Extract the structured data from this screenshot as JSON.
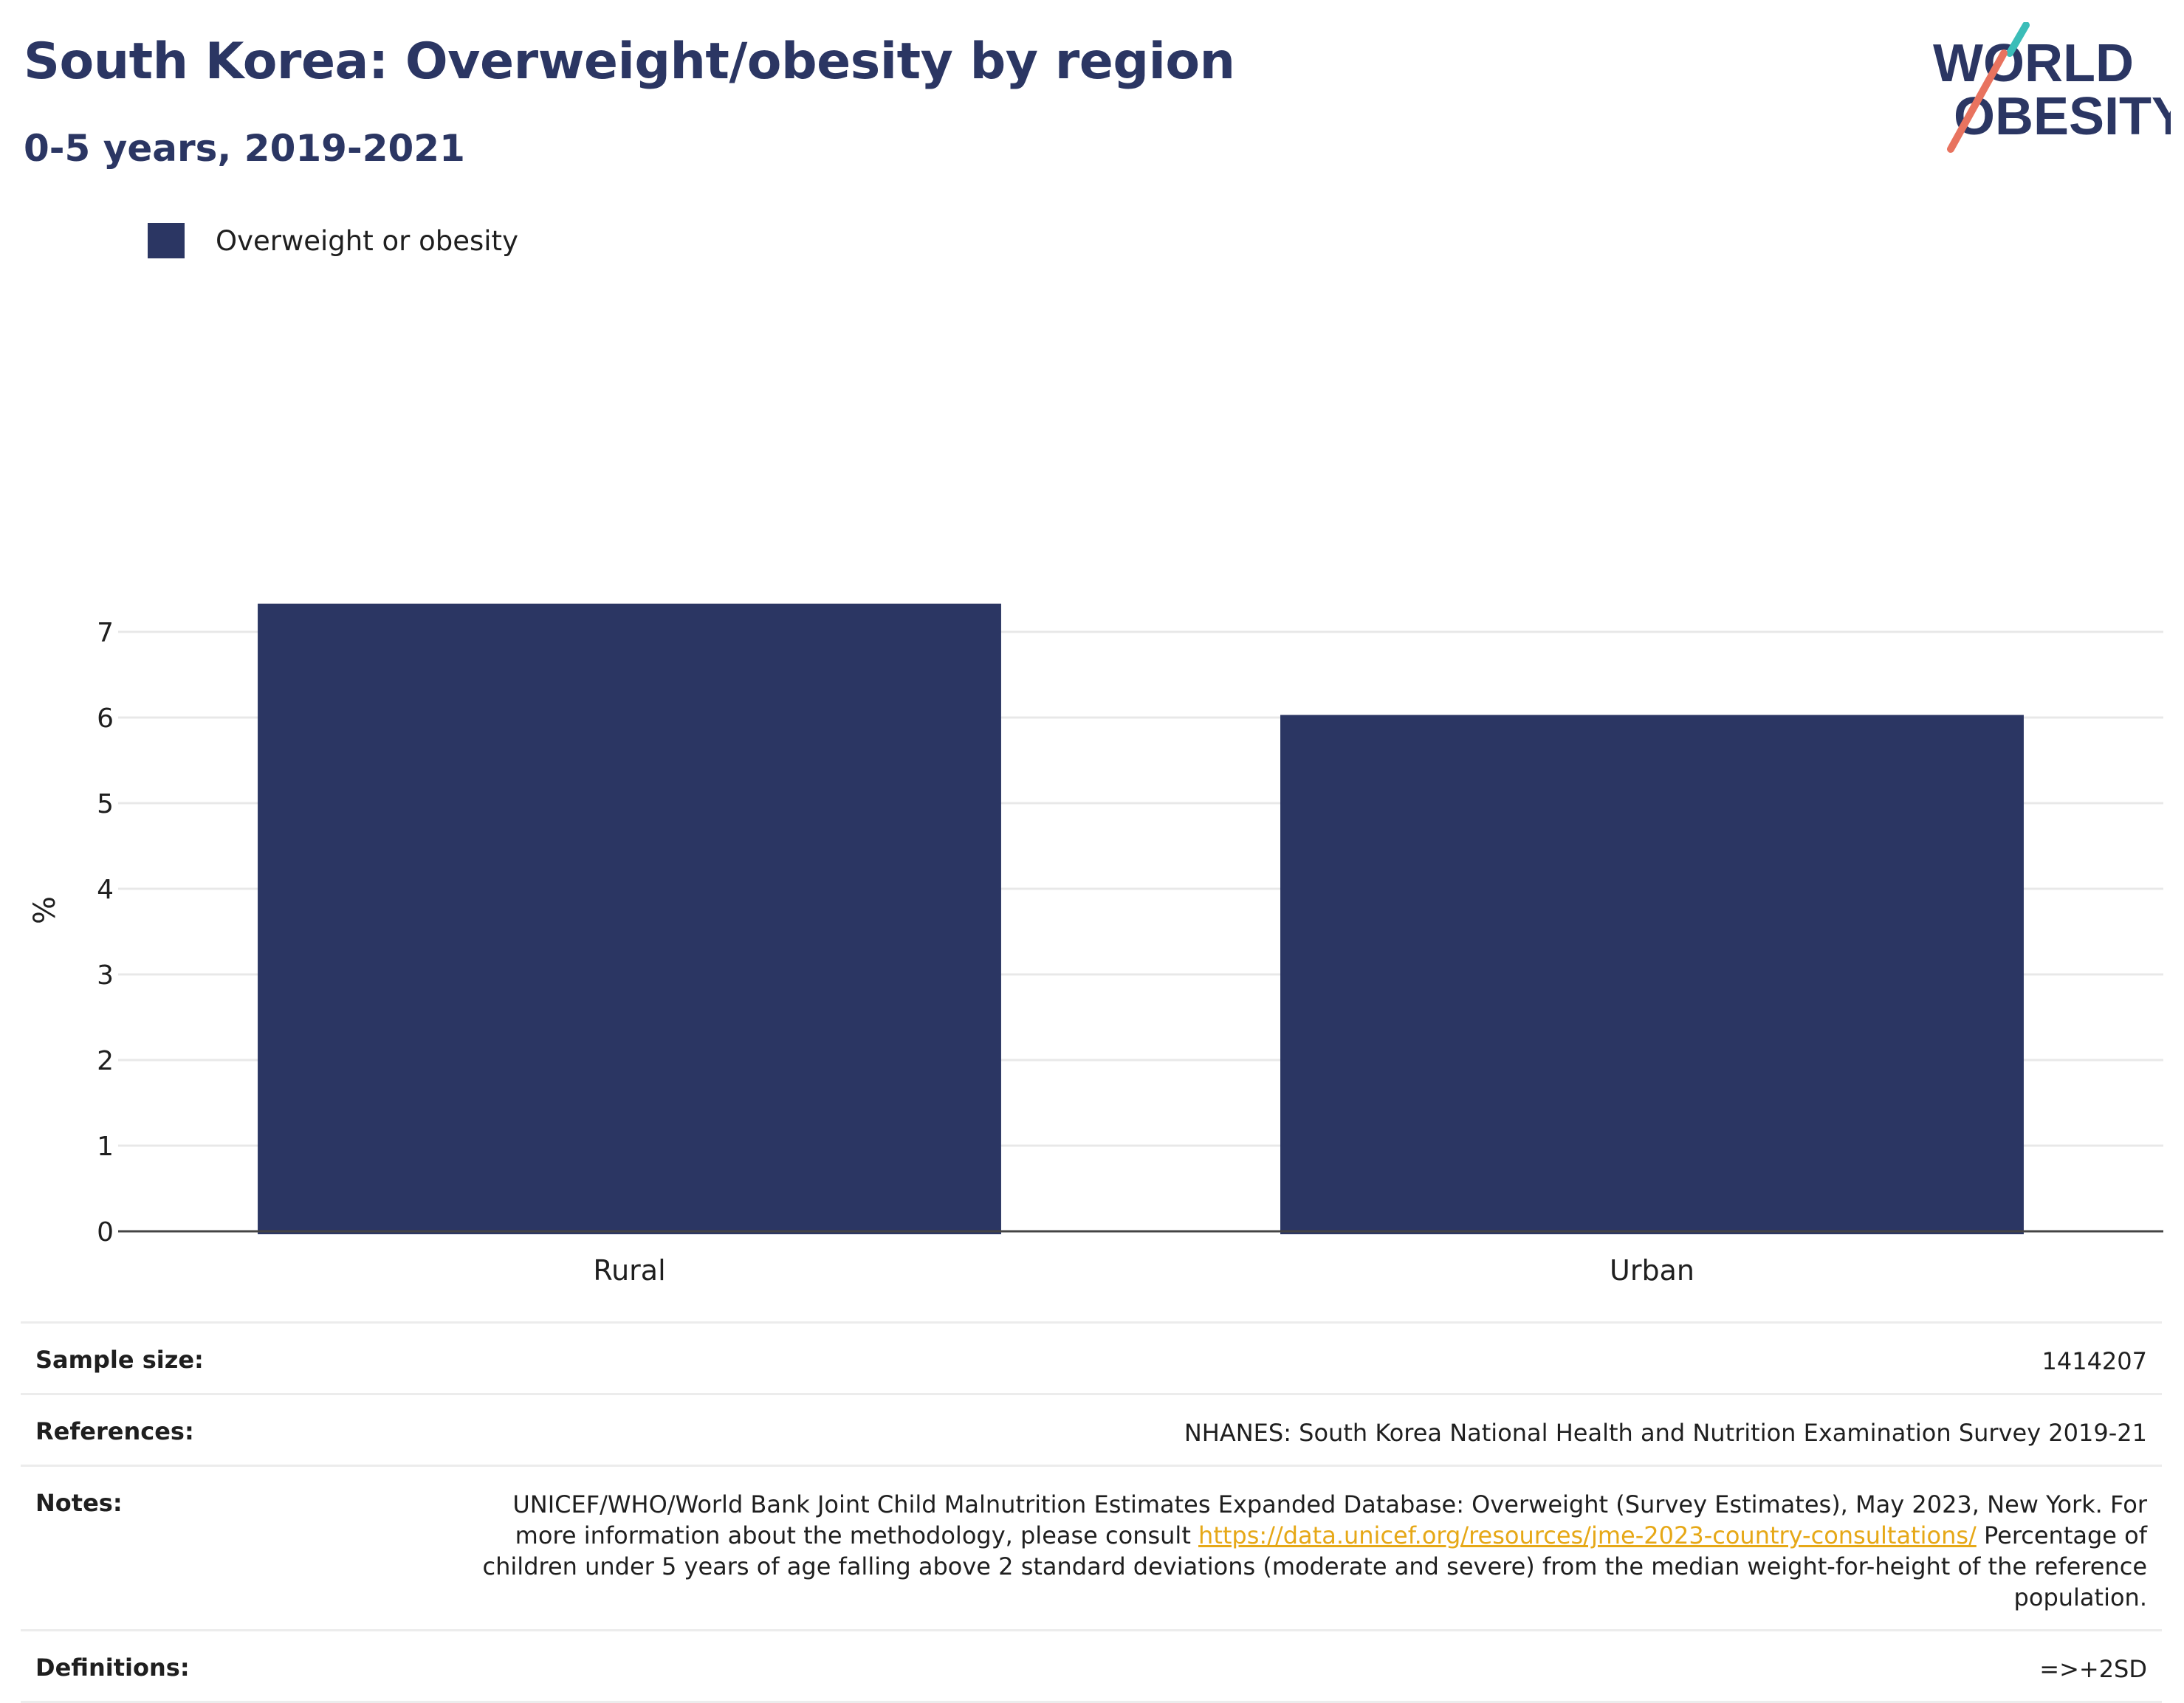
{
  "header": {
    "title": "South Korea: Overweight/obesity by region",
    "subtitle": "0-5 years, 2019-2021"
  },
  "logo": {
    "line1": "WORLD",
    "line2": "OBESITY",
    "accent_colors": [
      "#3bbdb8",
      "#e8735f"
    ]
  },
  "colors": {
    "bar": "#2b3663",
    "title": "#2b3663",
    "link": "#e6a817",
    "grid": "#e8e8e8"
  },
  "chart_data": {
    "type": "bar",
    "categories": [
      "Rural",
      "Urban"
    ],
    "series": [
      {
        "name": "Overweight or obesity",
        "values": [
          7.33,
          6.03
        ]
      }
    ],
    "ylabel": "%",
    "xlabel": "",
    "ylim": [
      0,
      7.5
    ],
    "yticks": [
      0,
      1,
      2,
      3,
      4,
      5,
      6,
      7
    ],
    "grid": true,
    "legend_position": "top-left"
  },
  "meta": {
    "sample_size_label": "Sample size:",
    "sample_size_value": "1414207",
    "references_label": "References:",
    "references_value": "NHANES: South Korea National Health and Nutrition Examination Survey 2019-21",
    "notes_label": "Notes:",
    "notes_text_1": "UNICEF/WHO/World Bank Joint Child Malnutrition Estimates Expanded Database: Overweight (Survey Estimates), May 2023, New York. For more information about the methodology, please consult ",
    "notes_link": "https://data.unicef.org/resources/jme-2023-country-consultations/",
    "notes_text_2": " Percentage of children under 5 years of age falling above 2 standard deviations (moderate and severe) from the median weight-for-height of the reference population.",
    "definitions_label": "Definitions:",
    "definitions_value": "=>+2SD"
  }
}
